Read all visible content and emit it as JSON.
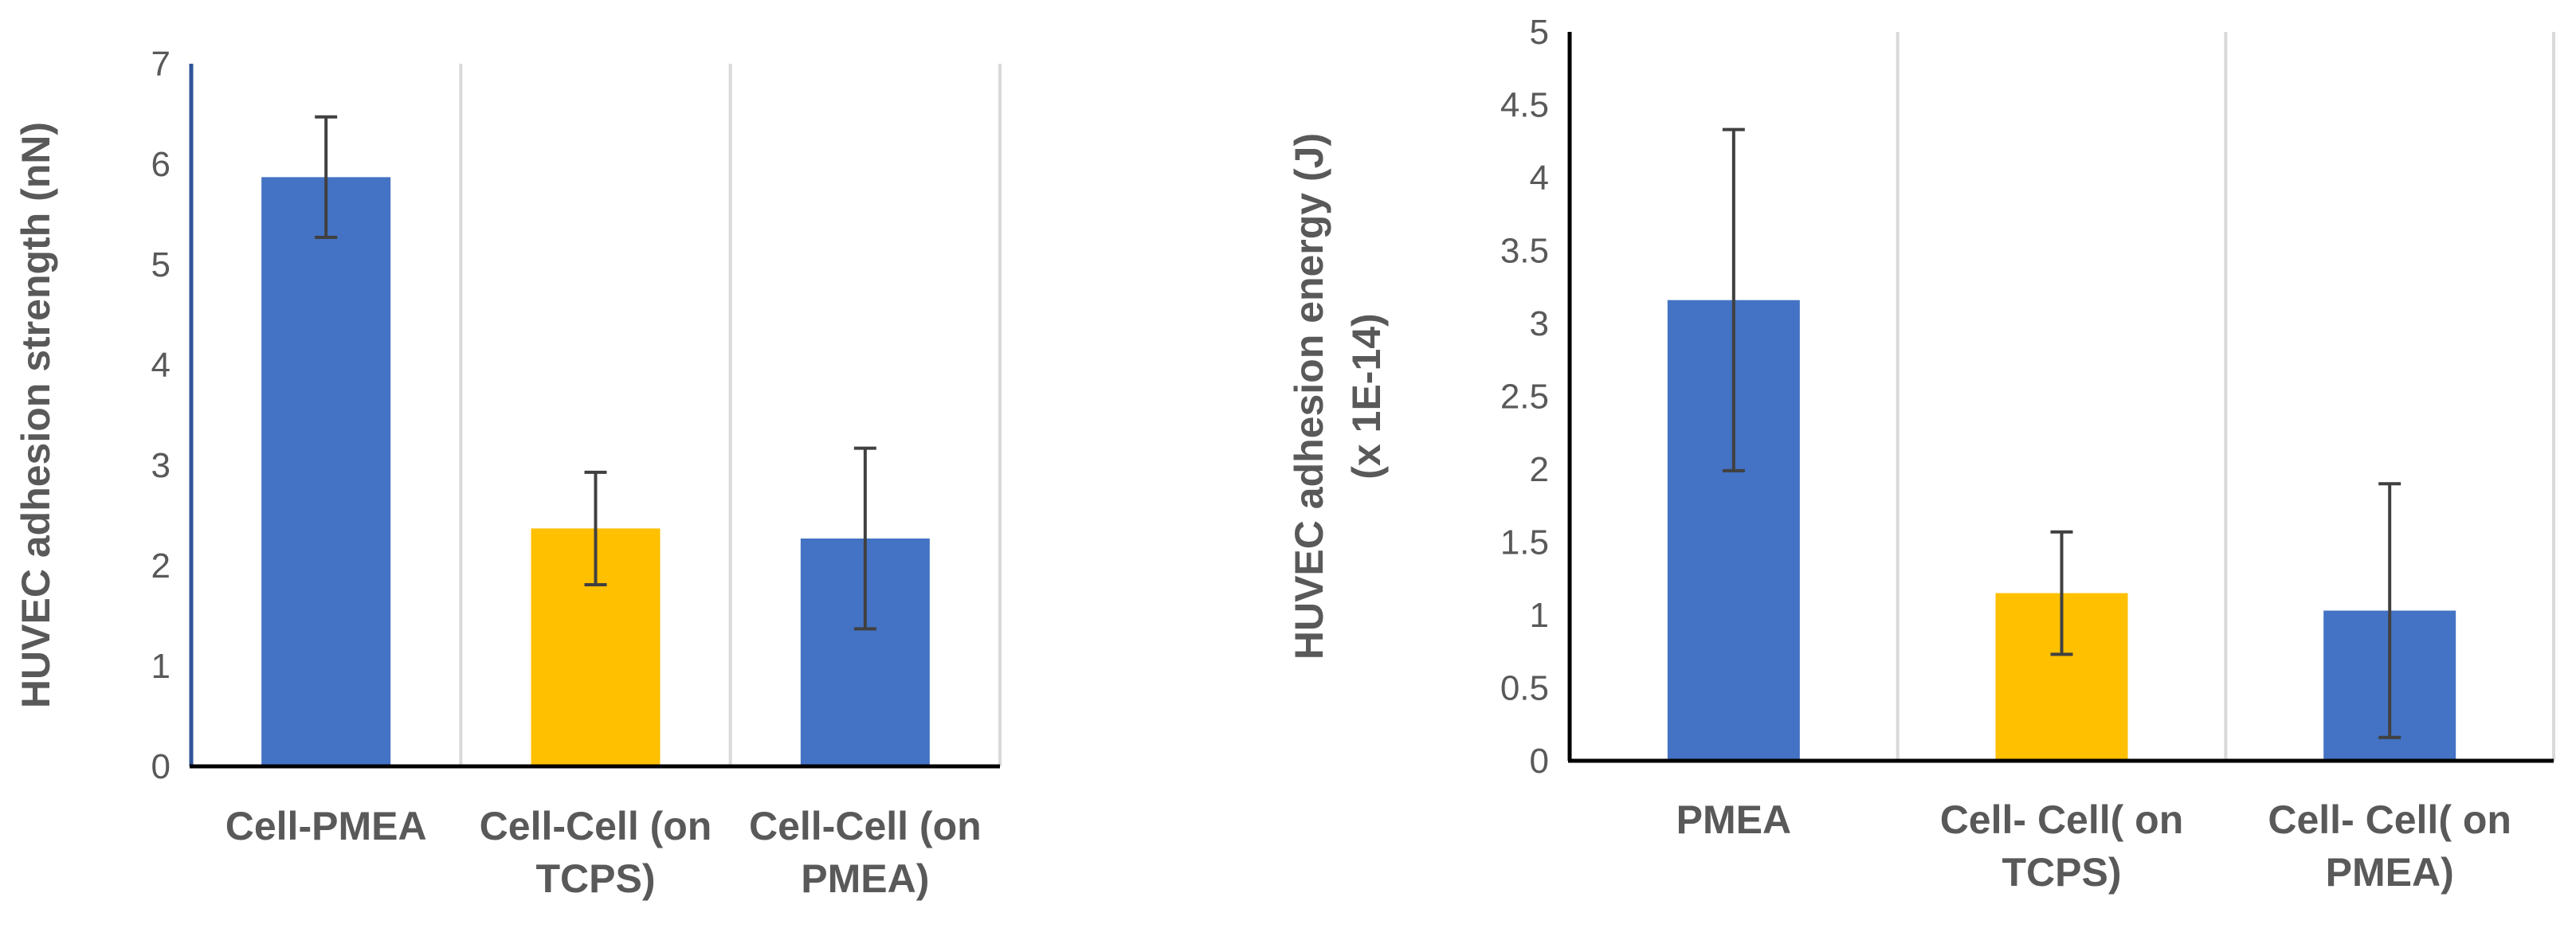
{
  "chart_data": [
    {
      "type": "bar",
      "title": "",
      "categories": [
        [
          "Cell-PMEA"
        ],
        [
          "Cell-Cell (on",
          "TCPS)"
        ],
        [
          "Cell-Cell (on",
          "PMEA)"
        ]
      ],
      "values": [
        5.87,
        2.37,
        2.27
      ],
      "errors": [
        0.6,
        0.56,
        0.9
      ],
      "colors": [
        "#4472c4",
        "#ffc000",
        "#4472c4"
      ],
      "ylabel": [
        "HUVEC adhesion strength (nN)"
      ],
      "xlabel": "",
      "ylim": [
        0,
        7
      ],
      "yticks": [
        0,
        1,
        2,
        3,
        4,
        5,
        6,
        7
      ],
      "ytick_labels": [
        "0",
        "1",
        "2",
        "3",
        "4",
        "5",
        "6",
        "7"
      ],
      "grid": "vertical category separators"
    },
    {
      "type": "bar",
      "title": "",
      "categories": [
        [
          "PMEA"
        ],
        [
          "Cell- Cell( on",
          "TCPS)"
        ],
        [
          "Cell- Cell( on",
          "PMEA)"
        ]
      ],
      "values": [
        3.16,
        1.15,
        1.03
      ],
      "errors": [
        1.17,
        0.42,
        0.87
      ],
      "colors": [
        "#4472c4",
        "#ffc000",
        "#4472c4"
      ],
      "ylabel": [
        "HUVEC adhesion energy (J)",
        "(x 1E-14)"
      ],
      "xlabel": "",
      "ylim": [
        0,
        5
      ],
      "yticks": [
        0,
        0.5,
        1,
        1.5,
        2,
        2.5,
        3,
        3.5,
        4,
        4.5,
        5
      ],
      "ytick_labels": [
        "0",
        "0.5",
        "1",
        "1.5",
        "2",
        "2.5",
        "3",
        "3.5",
        "4",
        "4.5",
        "5"
      ],
      "grid": "vertical category separators"
    }
  ]
}
